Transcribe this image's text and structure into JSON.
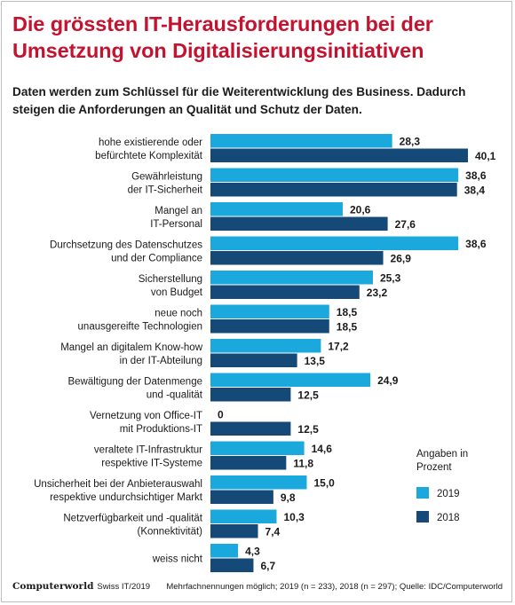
{
  "title": "Die grössten IT-Herausforderungen bei der Umsetzung von Digitalisierungsinitiativen",
  "subtitle": "Daten werden zum Schlüssel für die Weiterentwicklung des Business. Dadurch steigen die Anforderungen an Qualität und Schutz der Daten.",
  "footer": {
    "brand": "Computerworld",
    "source_short": "Swiss IT/2019",
    "note": "Mehrfachnennungen möglich; 2019 (n = 233), 2018 (n = 297); Quelle: IDC/Computerworld"
  },
  "colors": {
    "2019": "#1ba8dc",
    "2018": "#154a78"
  },
  "chart_data": {
    "type": "bar",
    "orientation": "horizontal",
    "categories": [
      [
        "hohe existierende oder",
        "befürchtete Komplexität"
      ],
      [
        "Gewährleistung",
        "der IT-Sicherheit"
      ],
      [
        "Mangel an",
        "IT-Personal"
      ],
      [
        "Durchsetzung des Datenschutzes",
        "und der Compliance"
      ],
      [
        "Sicherstellung",
        "von Budget"
      ],
      [
        "neue noch",
        "unausgereifte Technologien"
      ],
      [
        "Mangel an digitalem Know-how",
        "in der IT-Abteilung"
      ],
      [
        "Bewältigung der Datenmenge",
        "und -qualität"
      ],
      [
        "Vernetzung von Office-IT",
        "mit Produktions-IT"
      ],
      [
        "veraltete IT-Infrastruktur",
        "respektive IT-Systeme"
      ],
      [
        "Unsicherheit bei der Anbieterauswahl",
        "respektive undurchsichtiger Markt"
      ],
      [
        "Netzverfügbarkeit und -qualität",
        "(Konnektivität)"
      ],
      [
        "weiss nicht"
      ]
    ],
    "series": [
      {
        "name": "2019",
        "values": [
          28.3,
          38.6,
          20.6,
          38.6,
          25.3,
          18.5,
          17.2,
          24.9,
          0,
          14.6,
          15.0,
          10.3,
          4.3
        ]
      },
      {
        "name": "2018",
        "values": [
          40.1,
          38.4,
          27.6,
          26.9,
          23.2,
          18.5,
          13.5,
          12.5,
          12.5,
          11.8,
          9.8,
          7.4,
          6.7
        ]
      }
    ],
    "value_labels": [
      [
        "28,3",
        "38,6",
        "20,6",
        "38,6",
        "25,3",
        "18,5",
        "17,2",
        "24,9",
        "0",
        "14,6",
        "15,0",
        "10,3",
        "4,3"
      ],
      [
        "40,1",
        "38,4",
        "27,6",
        "26,9",
        "23,2",
        "18,5",
        "13,5",
        "12,5",
        "12,5",
        "11,8",
        "9,8",
        "7,4",
        "6,7"
      ]
    ],
    "legend": {
      "title": [
        "Angaben in",
        "Prozent"
      ],
      "placement": "right"
    },
    "xlim": [
      0,
      40.1
    ],
    "grid": false
  }
}
